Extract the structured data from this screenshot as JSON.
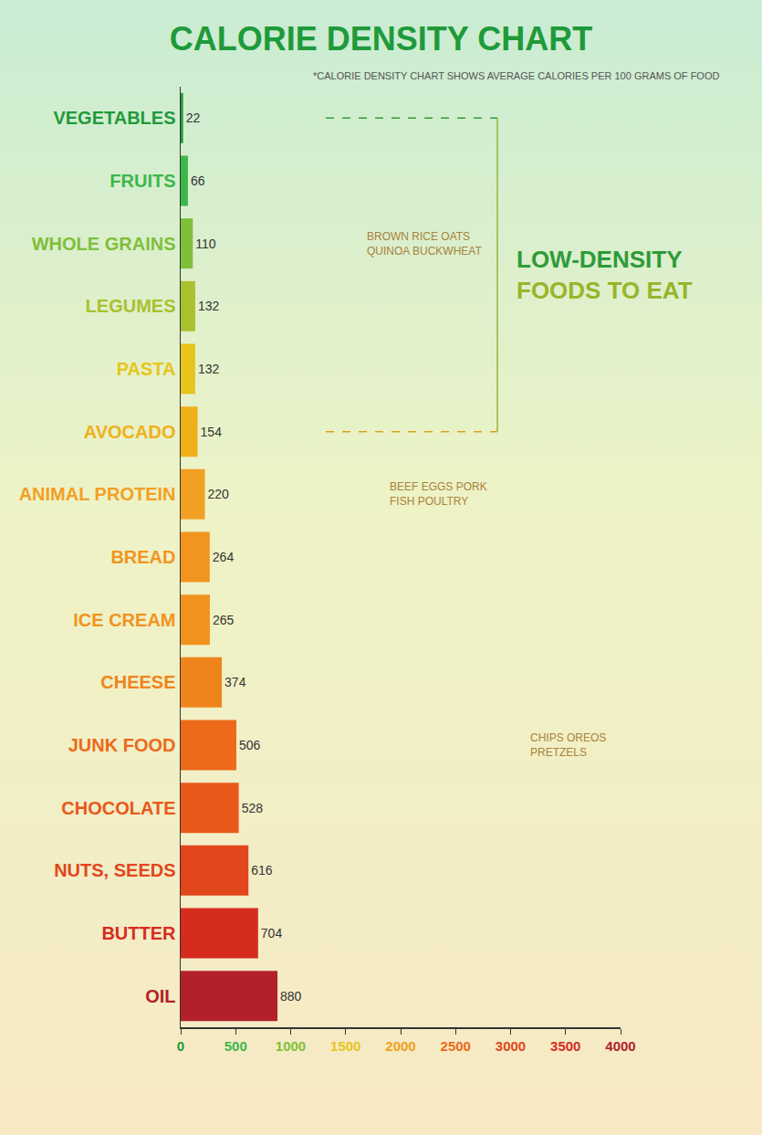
{
  "chart_data": {
    "type": "bar",
    "orientation": "horizontal",
    "title": "CALORIE DENSITY CHART",
    "subtitle": "*CALORIE DENSITY CHART SHOWS AVERAGE CALORIES PER 100 GRAMS OF FOOD",
    "categories": [
      "VEGETABLES",
      "FRUITS",
      "WHOLE GRAINS",
      "LEGUMES",
      "PASTA",
      "AVOCADO",
      "ANIMAL PROTEIN",
      "BREAD",
      "ICE CREAM",
      "CHEESE",
      "JUNK FOOD",
      "CHOCOLATE",
      "NUTS, SEEDS",
      "BUTTER",
      "OIL"
    ],
    "values": [
      22,
      66,
      110,
      132,
      132,
      154,
      220,
      264,
      265,
      374,
      506,
      528,
      616,
      704,
      880
    ],
    "colors": [
      "#1f9a3a",
      "#3cb84a",
      "#7fbf3a",
      "#a9c12e",
      "#e8c41c",
      "#f0b01a",
      "#f2a023",
      "#f2951f",
      "#f2921e",
      "#f0841c",
      "#ec6a1a",
      "#e8581a",
      "#e2461c",
      "#d62c1e",
      "#b3202b"
    ],
    "xlim": [
      0,
      4000
    ],
    "xticks": [
      0,
      500,
      1000,
      1500,
      2000,
      2500,
      3000,
      3500,
      4000
    ],
    "grid": false,
    "data_labels": true,
    "annotations": [
      {
        "text": [
          "BROWN RICE OATS",
          "QUINOA BUCKWHEAT"
        ],
        "category": "WHOLE GRAINS"
      },
      {
        "text": [
          "BEEF EGGS PORK",
          "FISH POULTRY"
        ],
        "category": "ANIMAL PROTEIN"
      },
      {
        "text": [
          "CHIPS OREOS",
          "PRETZELS"
        ],
        "category": "JUNK FOOD"
      },
      {
        "text": [
          "LOW-DENSITY",
          "FOODS TO EAT"
        ],
        "span": [
          "VEGETABLES",
          "AVOCADO"
        ]
      }
    ]
  }
}
